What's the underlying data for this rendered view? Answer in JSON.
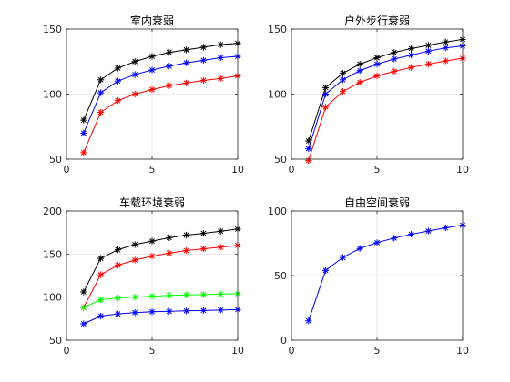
{
  "figure": {
    "background": "#ffffff",
    "axes_color": "#262626",
    "grid_color": "#dcdcdc"
  },
  "chart_data": [
    {
      "type": "line",
      "title": "室内衰弱",
      "xlabel": "",
      "ylabel": "",
      "grid": true,
      "xlim": [
        0,
        10
      ],
      "ylim": [
        50,
        150
      ],
      "xticks": [
        0,
        5,
        10
      ],
      "yticks": [
        50,
        100,
        150
      ],
      "x": [
        1,
        2,
        3,
        4,
        5,
        6,
        7,
        8,
        9,
        10
      ],
      "series": [
        {
          "color": "#000000",
          "marker": "*",
          "values": [
            80,
            111,
            120,
            125,
            129,
            132,
            134,
            136,
            138,
            139
          ]
        },
        {
          "color": "#0000ff",
          "marker": "*",
          "values": [
            70,
            101,
            110,
            115,
            118.5,
            121.5,
            124,
            126,
            128,
            129
          ]
        },
        {
          "color": "#ff0000",
          "marker": "*",
          "values": [
            55,
            86,
            95,
            100,
            103.5,
            106.5,
            108.5,
            110.5,
            112,
            114
          ]
        }
      ]
    },
    {
      "type": "line",
      "title": "户外步行衰弱",
      "xlabel": "",
      "ylabel": "",
      "grid": true,
      "xlim": [
        0,
        10
      ],
      "ylim": [
        50,
        150
      ],
      "xticks": [
        0,
        5,
        10
      ],
      "yticks": [
        50,
        100,
        150
      ],
      "x": [
        1,
        2,
        3,
        4,
        5,
        6,
        7,
        8,
        9,
        10
      ],
      "series": [
        {
          "color": "#000000",
          "marker": "*",
          "values": [
            64,
            105,
            116,
            123,
            128,
            132,
            135,
            137.5,
            140,
            142
          ]
        },
        {
          "color": "#0000ff",
          "marker": "*",
          "values": [
            58,
            100,
            111,
            118,
            123,
            127,
            130,
            133,
            135.5,
            137
          ]
        },
        {
          "color": "#ff0000",
          "marker": "*",
          "values": [
            49,
            90,
            102,
            109,
            114,
            117.5,
            120.5,
            123,
            125.5,
            127.5
          ]
        }
      ]
    },
    {
      "type": "line",
      "title": "车载环境衰弱",
      "xlabel": "",
      "ylabel": "",
      "grid": true,
      "xlim": [
        0,
        10
      ],
      "ylim": [
        50,
        200
      ],
      "xticks": [
        0,
        5,
        10
      ],
      "yticks": [
        50,
        100,
        150,
        200
      ],
      "x": [
        1,
        2,
        3,
        4,
        5,
        6,
        7,
        8,
        9,
        10
      ],
      "series": [
        {
          "color": "#000000",
          "marker": "*",
          "values": [
            106,
            145,
            155,
            161,
            165,
            169,
            172,
            174,
            176.5,
            179
          ]
        },
        {
          "color": "#ff0000",
          "marker": "*",
          "values": [
            88,
            126,
            137,
            143,
            147.5,
            151,
            154,
            156,
            158,
            160
          ]
        },
        {
          "color": "#00ff00",
          "marker": "*",
          "values": [
            88,
            97,
            99,
            100,
            101,
            102,
            102.5,
            103,
            103.5,
            104
          ]
        },
        {
          "color": "#0000ff",
          "marker": "*",
          "values": [
            69,
            78,
            80.5,
            82,
            83,
            83.5,
            84,
            84.5,
            85,
            85.5
          ]
        }
      ]
    },
    {
      "type": "line",
      "title": "自由空间衰弱",
      "xlabel": "",
      "ylabel": "",
      "grid": true,
      "xlim": [
        0,
        10
      ],
      "ylim": [
        0,
        100
      ],
      "xticks": [
        0,
        5,
        10
      ],
      "yticks": [
        0,
        50,
        100
      ],
      "x": [
        1,
        2,
        3,
        4,
        5,
        6,
        7,
        8,
        9,
        10
      ],
      "series": [
        {
          "color": "#0000ff",
          "marker": "*",
          "values": [
            15,
            54,
            64,
            71,
            75.5,
            79,
            82,
            84.5,
            87,
            89
          ]
        }
      ]
    }
  ]
}
